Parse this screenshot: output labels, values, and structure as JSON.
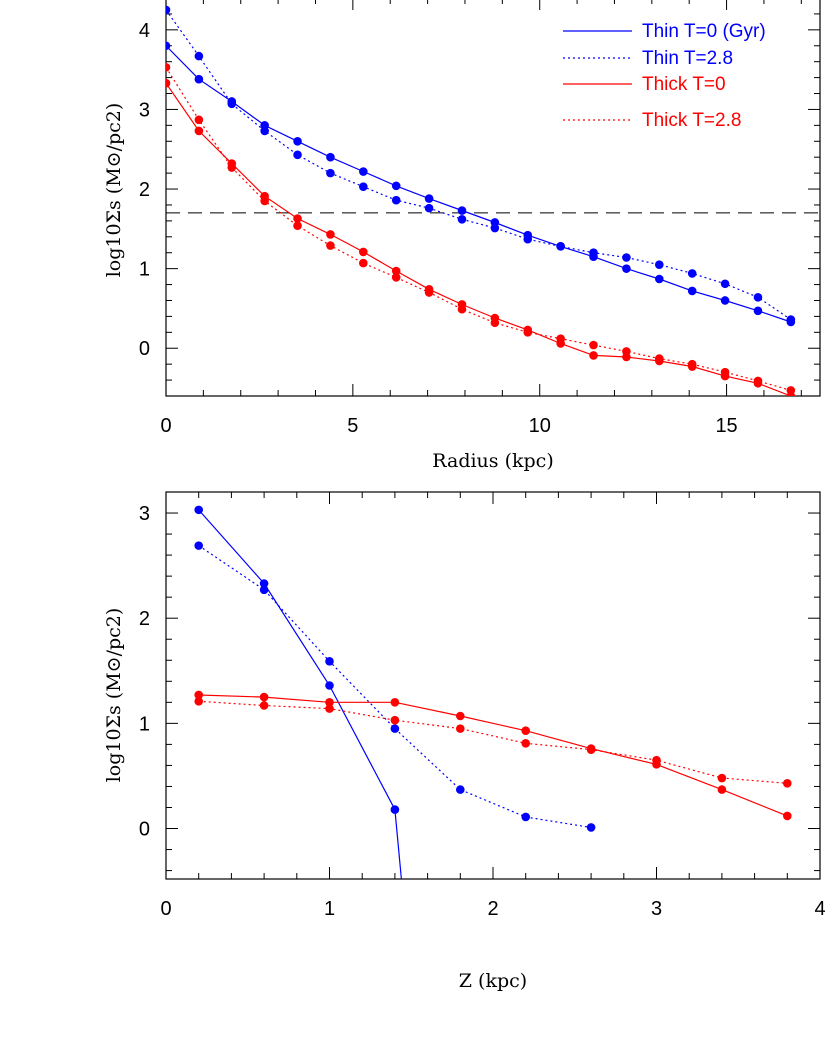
{
  "chart_data": [
    {
      "type": "line",
      "xlabel": "Radius (kpc)",
      "ylabel": "log10Σs (M⊙/pc2)",
      "xlim": [
        0,
        17.5
      ],
      "ylim": [
        -0.6,
        4.4
      ],
      "xticks": [
        0,
        5,
        10,
        15
      ],
      "yticks": [
        0,
        1,
        2,
        3,
        4
      ],
      "hline": 1.7,
      "legend_position": "top-right",
      "series": [
        {
          "name": "Thin T=0 (Gyr)",
          "color": "#0000ff",
          "style": "solid",
          "x": [
            0,
            0.88,
            1.76,
            2.64,
            3.52,
            4.4,
            5.28,
            6.16,
            7.04,
            7.92,
            8.8,
            9.68,
            10.56,
            11.44,
            12.32,
            13.2,
            14.08,
            14.96,
            15.84,
            16.72
          ],
          "y": [
            3.8,
            3.38,
            3.1,
            2.8,
            2.6,
            2.4,
            2.22,
            2.04,
            1.88,
            1.73,
            1.58,
            1.42,
            1.28,
            1.15,
            1.0,
            0.87,
            0.72,
            0.6,
            0.47,
            0.33
          ]
        },
        {
          "name": "Thin T=2.8",
          "color": "#0000ff",
          "style": "dotted",
          "x": [
            0,
            0.88,
            1.76,
            2.64,
            3.52,
            4.4,
            5.28,
            6.16,
            7.04,
            7.92,
            8.8,
            9.68,
            10.56,
            11.44,
            12.32,
            13.2,
            14.08,
            14.96,
            15.84,
            16.72
          ],
          "y": [
            4.25,
            3.67,
            3.07,
            2.73,
            2.43,
            2.2,
            2.03,
            1.86,
            1.76,
            1.62,
            1.51,
            1.37,
            1.28,
            1.2,
            1.14,
            1.05,
            0.94,
            0.81,
            0.64,
            0.36
          ]
        },
        {
          "name": "Thick T=0",
          "color": "#ff0000",
          "style": "solid",
          "x": [
            0,
            0.88,
            1.76,
            2.64,
            3.52,
            4.4,
            5.28,
            6.16,
            7.04,
            7.92,
            8.8,
            9.68,
            10.56,
            11.44,
            12.32,
            13.2,
            14.08,
            14.96,
            15.84,
            16.72
          ],
          "y": [
            3.33,
            2.73,
            2.32,
            1.91,
            1.63,
            1.43,
            1.21,
            0.97,
            0.74,
            0.55,
            0.38,
            0.23,
            0.06,
            -0.09,
            -0.11,
            -0.16,
            -0.23,
            -0.35,
            -0.44,
            -0.6
          ]
        },
        {
          "name": "Thick T=2.8",
          "color": "#ff0000",
          "style": "dotted",
          "x": [
            0,
            0.88,
            1.76,
            2.64,
            3.52,
            4.4,
            5.28,
            6.16,
            7.04,
            7.92,
            8.8,
            9.68,
            10.56,
            11.44,
            12.32,
            13.2,
            14.08,
            14.96,
            15.84,
            16.72
          ],
          "y": [
            3.53,
            2.87,
            2.27,
            1.85,
            1.54,
            1.29,
            1.07,
            0.89,
            0.7,
            0.49,
            0.32,
            0.2,
            0.12,
            0.04,
            -0.04,
            -0.13,
            -0.2,
            -0.3,
            -0.41,
            -0.53
          ]
        }
      ]
    },
    {
      "type": "line",
      "xlabel": "Z (kpc)",
      "ylabel": "log10Σs (M⊙/pc2)",
      "xlim": [
        0,
        4
      ],
      "ylim": [
        -0.48,
        3.2
      ],
      "xticks": [
        0,
        1,
        2,
        3,
        4
      ],
      "yticks": [
        0,
        1,
        2,
        3
      ],
      "series": [
        {
          "name": "Thin T=0 (Gyr)",
          "color": "#0000ff",
          "style": "solid",
          "x": [
            0.2,
            0.6,
            1.0,
            1.4,
            1.44
          ],
          "y": [
            3.03,
            2.33,
            1.36,
            0.18,
            -0.48
          ],
          "markers": [
            true,
            true,
            true,
            true,
            false
          ]
        },
        {
          "name": "Thin T=2.8",
          "color": "#0000ff",
          "style": "dotted",
          "x": [
            0.2,
            0.6,
            1.0,
            1.4,
            1.8,
            2.2,
            2.6
          ],
          "y": [
            2.69,
            2.27,
            1.59,
            0.95,
            0.37,
            0.11,
            0.01
          ]
        },
        {
          "name": "Thick T=0",
          "color": "#ff0000",
          "style": "solid",
          "x": [
            0.2,
            0.6,
            1.0,
            1.4,
            1.8,
            2.2,
            2.6,
            3.0,
            3.4,
            3.8
          ],
          "y": [
            1.27,
            1.25,
            1.2,
            1.2,
            1.07,
            0.93,
            0.76,
            0.61,
            0.37,
            0.12
          ]
        },
        {
          "name": "Thick T=2.8",
          "color": "#ff0000",
          "style": "dotted",
          "x": [
            0.2,
            0.6,
            1.0,
            1.4,
            1.8,
            2.2,
            2.6,
            3.0,
            3.4,
            3.8
          ],
          "y": [
            1.21,
            1.17,
            1.14,
            1.03,
            0.95,
            0.81,
            0.75,
            0.65,
            0.48,
            0.43
          ]
        }
      ]
    }
  ]
}
